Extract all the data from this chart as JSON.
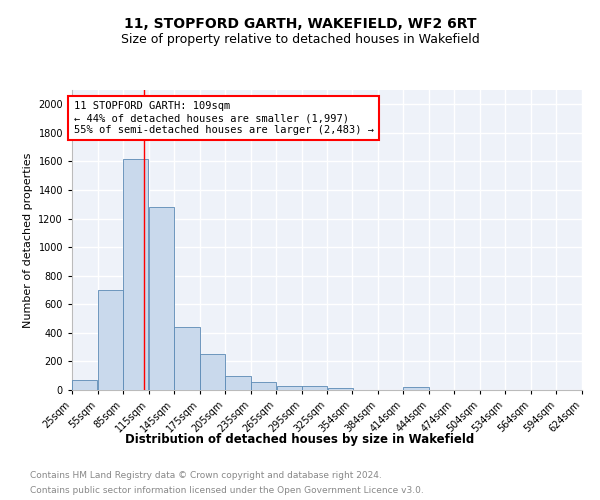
{
  "title_line1": "11, STOPFORD GARTH, WAKEFIELD, WF2 6RT",
  "title_line2": "Size of property relative to detached houses in Wakefield",
  "xlabel": "Distribution of detached houses by size in Wakefield",
  "ylabel": "Number of detached properties",
  "annotation_line1": "11 STOPFORD GARTH: 109sqm",
  "annotation_line2": "← 44% of detached houses are smaller (1,997)",
  "annotation_line3": "55% of semi-detached houses are larger (2,483) →",
  "property_size_sqm": 109,
  "bin_edges": [
    25,
    55,
    85,
    115,
    145,
    175,
    205,
    235,
    265,
    295,
    325,
    354,
    384,
    414,
    444,
    474,
    504,
    534,
    564,
    594,
    624
  ],
  "bar_heights": [
    70,
    700,
    1620,
    1280,
    440,
    255,
    95,
    55,
    30,
    25,
    15,
    0,
    0,
    20,
    0,
    0,
    0,
    0,
    0,
    0
  ],
  "bar_color": "#c9d9ec",
  "bar_edge_color": "#5b8ab5",
  "red_line_x": 109,
  "background_color": "#eef2f9",
  "grid_color": "#ffffff",
  "ylim": [
    0,
    2100
  ],
  "yticks": [
    0,
    200,
    400,
    600,
    800,
    1000,
    1200,
    1400,
    1600,
    1800,
    2000
  ],
  "footnote_line1": "Contains HM Land Registry data © Crown copyright and database right 2024.",
  "footnote_line2": "Contains public sector information licensed under the Open Government Licence v3.0.",
  "title_fontsize": 10,
  "subtitle_fontsize": 9,
  "xlabel_fontsize": 8.5,
  "ylabel_fontsize": 8,
  "tick_fontsize": 7,
  "annotation_fontsize": 7.5,
  "footnote_fontsize": 6.5
}
